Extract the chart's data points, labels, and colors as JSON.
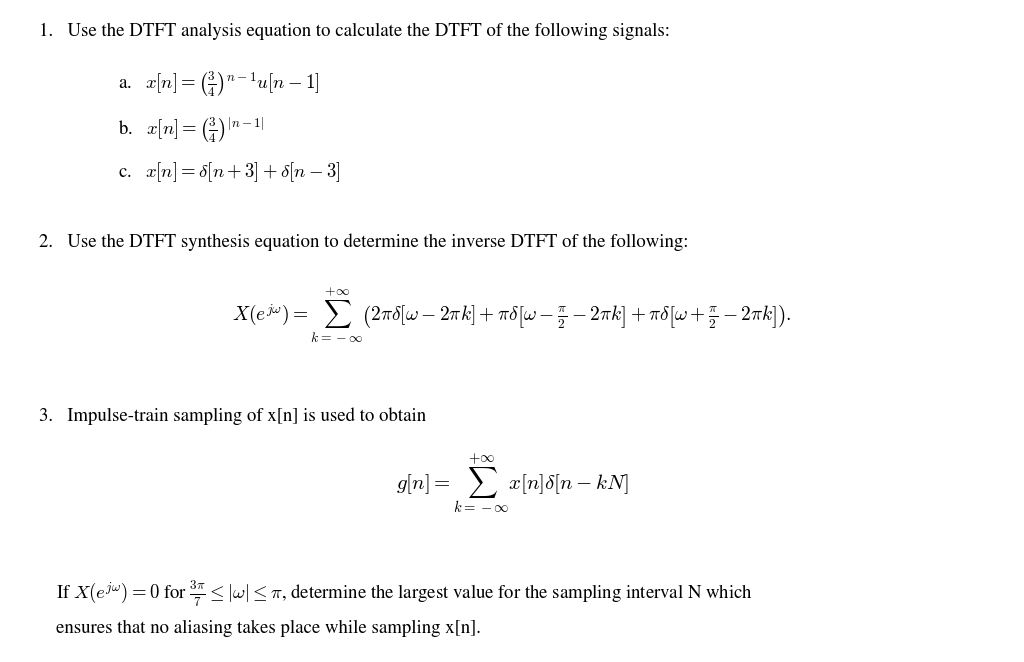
{
  "background_color": "#ffffff",
  "figsize": [
    10.24,
    6.62
  ],
  "dpi": 100,
  "line1": "1.   Use the DTFT analysis equation to calculate the DTFT of the following signals:",
  "line_a": "a.   $x[n] = \\left(\\frac{3}{4}\\right)^{n-1}u[n-1]$",
  "line_b": "b.   $x[n] = \\left(\\frac{3}{4}\\right)^{|n-1|}$",
  "line_c": "c.   $x[n] = \\delta[n+3] + \\delta[n-3]$",
  "line2": "2.   Use the DTFT synthesis equation to determine the inverse DTFT of the following:",
  "line2_eq": "$X(e^{j\\omega}) = \\sum_{k=-\\infty}^{+\\infty} \\left(2\\pi\\delta[\\omega - 2\\pi k] + \\pi\\delta\\left[\\omega - \\frac{\\pi}{2} - 2\\pi k\\right] + \\pi\\delta\\left[\\omega + \\frac{\\pi}{2} - 2\\pi k\\right]\\right).$",
  "line3": "3.   Impulse-train sampling of x[n] is used to obtain",
  "line3_eq": "$g[n] = \\sum_{k=-\\infty}^{+\\infty} x[n]\\delta[n - kN]$",
  "line4a": "If $X(e^{j\\omega})= 0$ for $\\frac{3\\pi}{7} \\leq |\\omega| \\leq \\pi$, determine the largest value for the sampling interval N which",
  "line4b": "ensures that no aliasing takes place while sampling x[n]."
}
